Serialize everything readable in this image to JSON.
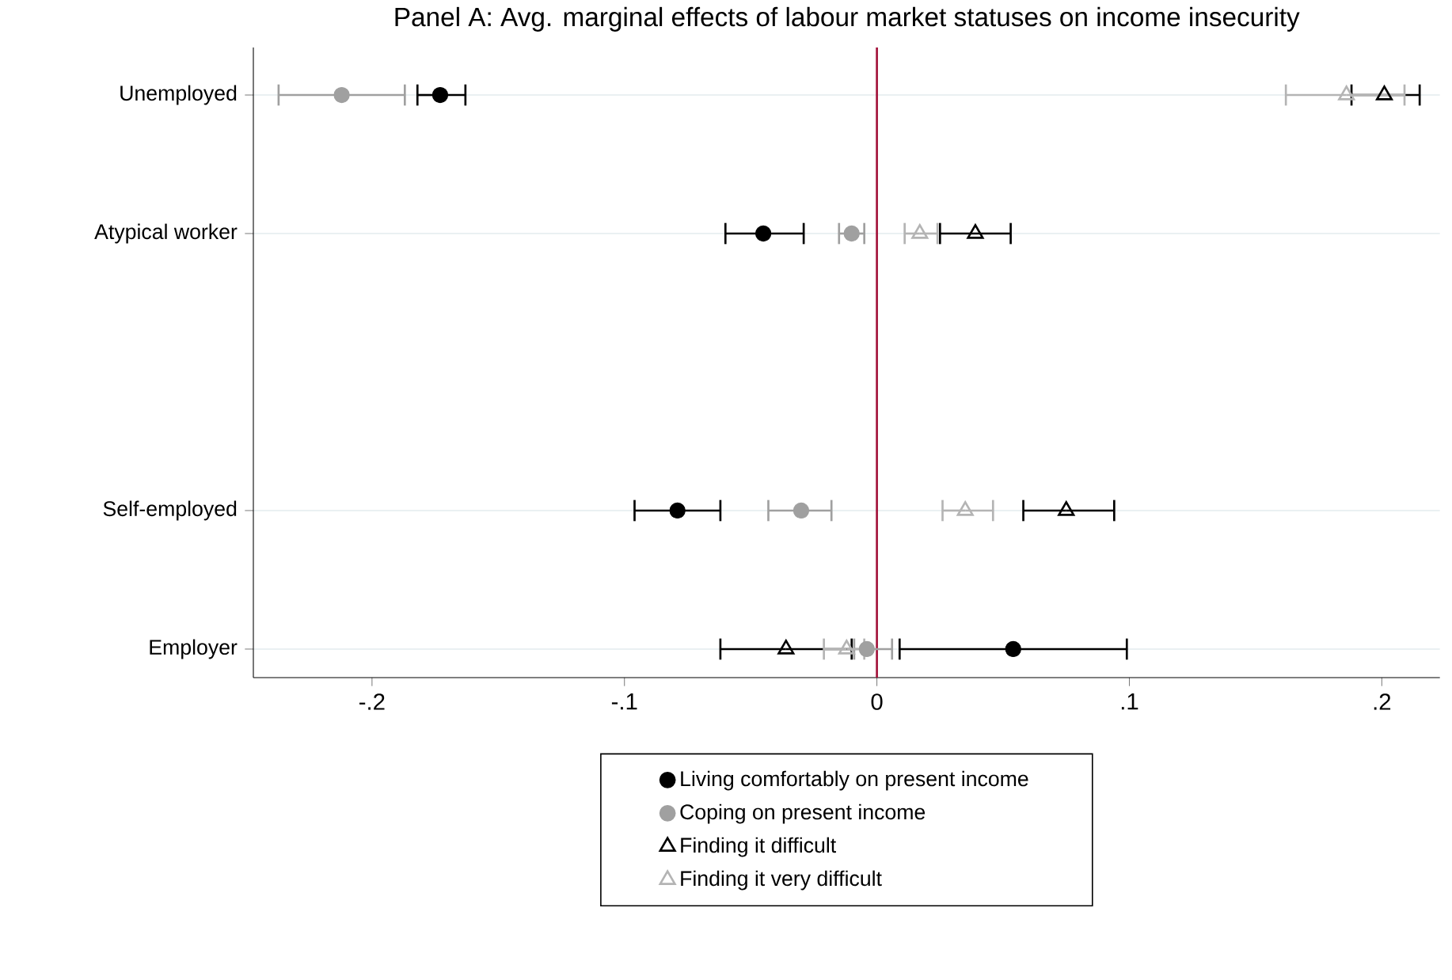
{
  "chart_data": {
    "type": "scatter",
    "orientation": "horizontal",
    "title": "Panel A: Avg. marginal effects of labour market statuses on income insecurity",
    "categories": [
      "Unemployed",
      "Atypical worker",
      null,
      "Self-employed",
      "Employer"
    ],
    "series": [
      {
        "name": "Living comfortably on present income",
        "color": "#000000",
        "marker": "circle",
        "values": [
          -0.173,
          -0.045,
          null,
          -0.079,
          0.054
        ],
        "errors": [
          [
            -0.182,
            -0.163
          ],
          [
            -0.06,
            -0.029
          ],
          null,
          [
            -0.096,
            -0.062
          ],
          [
            0.009,
            0.099
          ]
        ]
      },
      {
        "name": "Coping on present income",
        "color": "#a0a0a0",
        "marker": "circle",
        "values": [
          -0.212,
          -0.01,
          null,
          -0.03,
          -0.004
        ],
        "errors": [
          [
            -0.237,
            -0.187
          ],
          [
            -0.015,
            -0.005
          ],
          null,
          [
            -0.043,
            -0.018
          ],
          [
            -0.009,
            0.006
          ]
        ]
      },
      {
        "name": "Finding it difficult",
        "color": "#000000",
        "marker": "triangle",
        "values": [
          0.201,
          0.039,
          null,
          0.075,
          -0.036
        ],
        "errors": [
          [
            0.188,
            0.215
          ],
          [
            0.025,
            0.053
          ],
          null,
          [
            0.058,
            0.094
          ],
          [
            -0.062,
            -0.01
          ]
        ]
      },
      {
        "name": "Finding it very difficult",
        "color": "#b4b4b4",
        "marker": "triangle",
        "values": [
          0.186,
          0.017,
          null,
          0.035,
          -0.012
        ],
        "errors": [
          [
            0.162,
            0.209
          ],
          [
            0.011,
            0.024
          ],
          null,
          [
            0.026,
            0.046
          ],
          [
            -0.021,
            -0.005
          ]
        ]
      }
    ],
    "xlim": [
      -0.247,
      0.223
    ],
    "xticks": [
      {
        "value": -0.2,
        "label": "-.2"
      },
      {
        "value": -0.1,
        "label": "-.1"
      },
      0,
      {
        "value": 0.1,
        "label": ".1"
      },
      {
        "value": 0.2,
        "label": ".2"
      }
    ],
    "ref_lines": [
      {
        "axis": "x",
        "value": 0,
        "color": "#a3123a"
      }
    ],
    "grid": "y",
    "legend": "bottom"
  }
}
